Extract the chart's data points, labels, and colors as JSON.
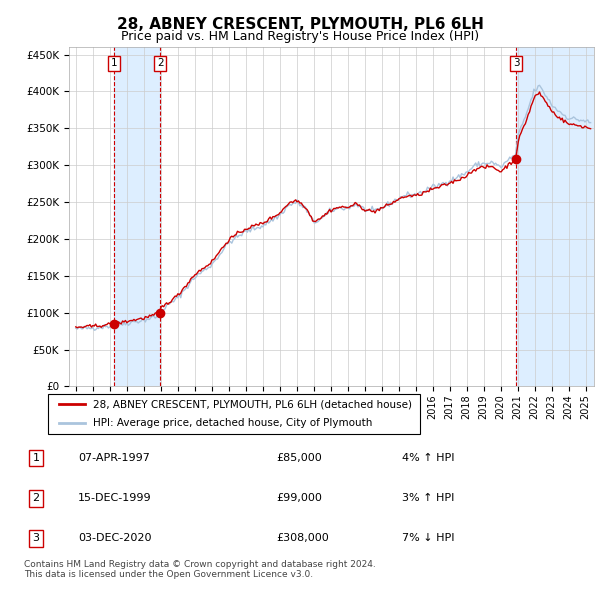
{
  "title": "28, ABNEY CRESCENT, PLYMOUTH, PL6 6LH",
  "subtitle": "Price paid vs. HM Land Registry's House Price Index (HPI)",
  "title_fontsize": 11,
  "subtitle_fontsize": 9,
  "xlim": [
    1994.6,
    2025.5
  ],
  "ylim": [
    0,
    460000
  ],
  "yticks": [
    0,
    50000,
    100000,
    150000,
    200000,
    250000,
    300000,
    350000,
    400000,
    450000
  ],
  "ytick_labels": [
    "£0",
    "£50K",
    "£100K",
    "£150K",
    "£200K",
    "£250K",
    "£300K",
    "£350K",
    "£400K",
    "£450K"
  ],
  "xticks": [
    1995,
    1996,
    1997,
    1998,
    1999,
    2000,
    2001,
    2002,
    2003,
    2004,
    2005,
    2006,
    2007,
    2008,
    2009,
    2010,
    2011,
    2012,
    2013,
    2014,
    2015,
    2016,
    2017,
    2018,
    2019,
    2020,
    2021,
    2022,
    2023,
    2024,
    2025
  ],
  "background_color": "#ffffff",
  "grid_color": "#cccccc",
  "hpi_line_color": "#aac4dd",
  "price_line_color": "#cc0000",
  "sale_marker_color": "#cc0000",
  "vline_color": "#cc0000",
  "shade_color": "#ddeeff",
  "sales": [
    {
      "date_year": 1997.27,
      "price": 85000,
      "label": "1"
    },
    {
      "date_year": 1999.96,
      "price": 99000,
      "label": "2"
    },
    {
      "date_year": 2020.92,
      "price": 308000,
      "label": "3"
    }
  ],
  "legend_entries": [
    "28, ABNEY CRESCENT, PLYMOUTH, PL6 6LH (detached house)",
    "HPI: Average price, detached house, City of Plymouth"
  ],
  "table_rows": [
    {
      "num": "1",
      "date": "07-APR-1997",
      "price": "£85,000",
      "hpi": "4% ↑ HPI"
    },
    {
      "num": "2",
      "date": "15-DEC-1999",
      "price": "£99,000",
      "hpi": "3% ↑ HPI"
    },
    {
      "num": "3",
      "date": "03-DEC-2020",
      "price": "£308,000",
      "hpi": "7% ↓ HPI"
    }
  ],
  "footer": "Contains HM Land Registry data © Crown copyright and database right 2024.\nThis data is licensed under the Open Government Licence v3.0."
}
